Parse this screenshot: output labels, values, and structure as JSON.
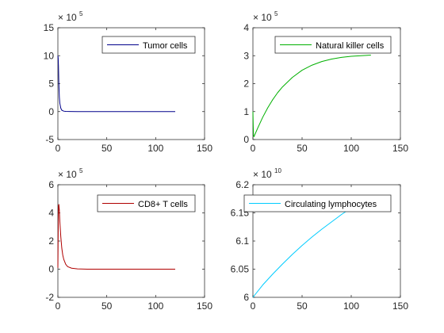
{
  "chart_data": [
    {
      "type": "line",
      "name_key": "tumor",
      "x_ticks": [
        0,
        50,
        100,
        150
      ],
      "y_ticks": [
        -5,
        0,
        5,
        10,
        15
      ],
      "xlim": [
        0,
        150
      ],
      "ylim": [
        -5,
        15
      ],
      "exponent_base": "× 10",
      "exponent_power": "5",
      "legend": "Tumor cells",
      "legend_position": "top-right",
      "color": "#00008B",
      "series": [
        {
          "name": "Tumor cells",
          "x": [
            0,
            0.3,
            0.6,
            1,
            1.5,
            2,
            3,
            4,
            6,
            8,
            12,
            20,
            40,
            60,
            80,
            100,
            120
          ],
          "y": [
            10,
            9.6,
            8.2,
            5.0,
            2.6,
            1.5,
            0.6,
            0.25,
            0.08,
            0.03,
            0.01,
            0,
            0,
            0,
            0,
            0,
            0
          ]
        }
      ]
    },
    {
      "type": "line",
      "name_key": "nk",
      "x_ticks": [
        0,
        50,
        100,
        150
      ],
      "y_ticks": [
        0,
        1,
        2,
        3,
        4
      ],
      "xlim": [
        0,
        150
      ],
      "ylim": [
        0,
        4
      ],
      "exponent_base": "× 10",
      "exponent_power": "5",
      "legend": "Natural killer cells",
      "legend_position": "top-right",
      "color": "#00B000",
      "series": [
        {
          "name": "Natural killer cells",
          "x": [
            0,
            0.3,
            0.6,
            1,
            2,
            5,
            10,
            15,
            20,
            25,
            30,
            40,
            50,
            60,
            70,
            80,
            90,
            100,
            110,
            120
          ],
          "y": [
            1.0,
            0.5,
            0.15,
            0.1,
            0.18,
            0.42,
            0.8,
            1.13,
            1.42,
            1.67,
            1.88,
            2.22,
            2.48,
            2.66,
            2.79,
            2.88,
            2.94,
            2.98,
            3.0,
            3.02
          ]
        }
      ]
    },
    {
      "type": "line",
      "name_key": "cd8",
      "x_ticks": [
        0,
        50,
        100,
        150
      ],
      "y_ticks": [
        -2,
        0,
        2,
        4,
        6
      ],
      "xlim": [
        0,
        150
      ],
      "ylim": [
        -2,
        6
      ],
      "exponent_base": "× 10",
      "exponent_power": "5",
      "legend": "CD8+ T cells",
      "legend_position": "top-right",
      "color": "#B00000",
      "series": [
        {
          "name": "CD8+ T cells",
          "x": [
            0,
            0.3,
            0.7,
            1,
            1.5,
            2,
            3,
            4,
            5,
            6,
            8,
            10,
            14,
            20,
            30,
            60,
            90,
            120
          ],
          "y": [
            0.1,
            2.5,
            4.5,
            4.6,
            4.2,
            3.4,
            2.3,
            1.5,
            1.0,
            0.7,
            0.35,
            0.18,
            0.07,
            0.02,
            0,
            0,
            0,
            0
          ]
        }
      ]
    },
    {
      "type": "line",
      "name_key": "lymph",
      "x_ticks": [
        0,
        50,
        100,
        150
      ],
      "y_ticks": [
        6,
        6.05,
        6.1,
        6.15,
        6.2
      ],
      "xlim": [
        0,
        150
      ],
      "ylim": [
        6,
        6.2
      ],
      "exponent_base": "× 10",
      "exponent_power": "10",
      "legend": "Circulating lymphocytes",
      "legend_position": "top-right",
      "color": "#00CCFF",
      "series": [
        {
          "name": "Circulating lymphocytes",
          "x": [
            0,
            10,
            20,
            30,
            40,
            50,
            60,
            70,
            80,
            90,
            100,
            110,
            120
          ],
          "y": [
            6.0,
            6.022,
            6.041,
            6.059,
            6.076,
            6.092,
            6.107,
            6.121,
            6.134,
            6.147,
            6.159,
            6.17,
            6.18
          ]
        }
      ]
    }
  ]
}
